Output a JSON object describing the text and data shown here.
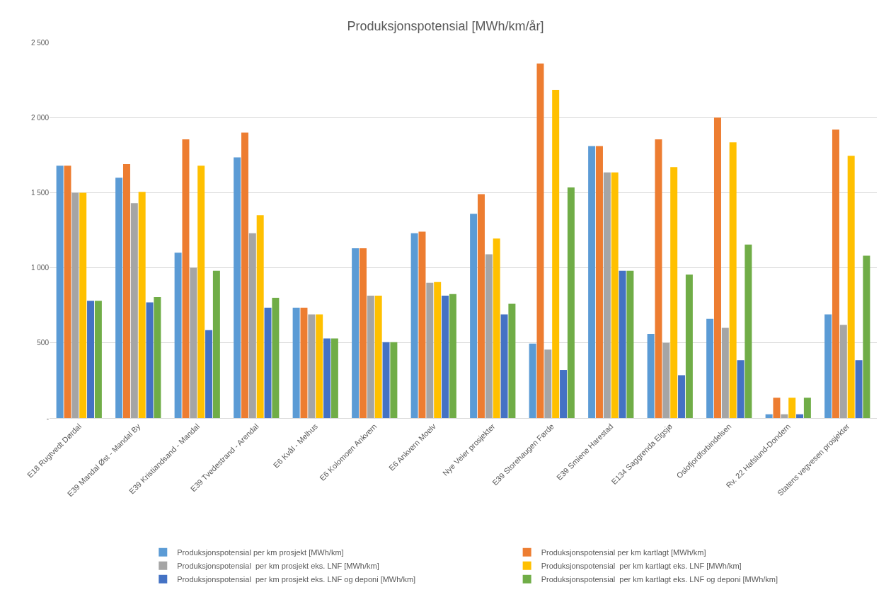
{
  "chart_data": {
    "type": "bar",
    "title": "Produksjonspotensial [MWh/km/år]",
    "categories": [
      "E18 Rugtvedt Dørdal",
      "E39 Mandal Øst - Mandal By",
      "E39 Kristiandsand - Mandal",
      "E39 Tvedestrand - Arendal",
      "E6 Kvål - Melhus",
      "E6 Kolomoen Ankvern",
      "E6 Ankvern Moelv",
      "Nye Veier prosjekter",
      "E39 Storehaugen Førde",
      "E39 Smiene Harestad",
      "E134 Saggrenda Elgsjø",
      "Oslofjordforbindelsen",
      "Rv. 22 Hafslund-Dondern",
      "Statens vegvesen prosjekter"
    ],
    "series": [
      {
        "name": "Produksjonspotensial per km prosjekt [MWh/km]",
        "color": "#5b9bd5",
        "values": [
          1680,
          1600,
          1100,
          1735,
          735,
          1130,
          1230,
          1360,
          495,
          1810,
          560,
          660,
          25,
          690
        ]
      },
      {
        "name": "Produksjonspotensial per km kartlagt [MWh/km]",
        "color": "#ed7d31",
        "values": [
          1680,
          1690,
          1855,
          1900,
          735,
          1130,
          1240,
          1490,
          2360,
          1810,
          1855,
          2000,
          135,
          1920
        ]
      },
      {
        "name": "Produksjonspotensial  per km prosjekt eks. LNF [MWh/km]",
        "color": "#a5a5a5",
        "values": [
          1500,
          1430,
          1000,
          1230,
          690,
          815,
          900,
          1090,
          455,
          1635,
          500,
          600,
          25,
          620
        ]
      },
      {
        "name": "Produksjonspotensial  per km kartlagt eks. LNF [MWh/km]",
        "color": "#ffc000",
        "values": [
          1500,
          1505,
          1680,
          1350,
          690,
          815,
          905,
          1195,
          2185,
          1635,
          1670,
          1835,
          135,
          1745
        ]
      },
      {
        "name": "Produksjonspotensial  per km prosjekt eks. LNF og deponi [MWh/km]",
        "color": "#4472c4",
        "values": [
          780,
          770,
          585,
          735,
          530,
          505,
          815,
          690,
          320,
          980,
          285,
          385,
          25,
          385
        ]
      },
      {
        "name": "Produksjonspotensial  per km kartlagt eks. LNF og deponi [MWh/km]",
        "color": "#70ad47",
        "values": [
          780,
          805,
          980,
          800,
          530,
          505,
          825,
          760,
          1535,
          980,
          955,
          1155,
          135,
          1080
        ]
      }
    ],
    "ylim": [
      0,
      2500
    ],
    "yticks": [
      {
        "value": 0,
        "label": "-"
      },
      {
        "value": 500,
        "label": "500"
      },
      {
        "value": 1000,
        "label": "1 000"
      },
      {
        "value": 1500,
        "label": "1 500"
      },
      {
        "value": 2000,
        "label": "2 000"
      },
      {
        "value": 2500,
        "label": "2 500"
      }
    ],
    "grid": "y",
    "legend": "bottom"
  }
}
